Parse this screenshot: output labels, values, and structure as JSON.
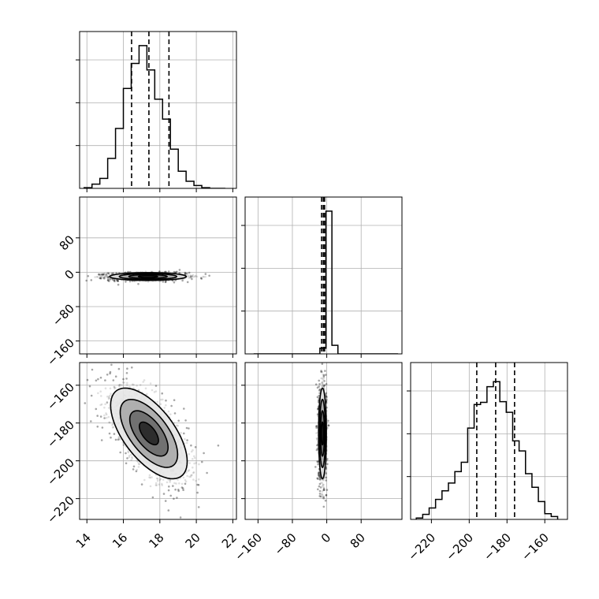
{
  "chart_data": {
    "type": "corner",
    "parameters": 3,
    "colors": {
      "line": "#000000",
      "grid": "#b0b0b0",
      "background": "#ffffff",
      "fill_dark": "#303030",
      "fill_mid": "#7a7a7a",
      "fill_light": "#cfcfcf"
    },
    "grid": true,
    "axes": [
      {
        "range": [
          13.6,
          22.2
        ],
        "ticks": [
          14,
          16,
          18,
          20,
          22
        ],
        "tick_labels": [
          "14",
          "16",
          "18",
          "20",
          "22"
        ]
      },
      {
        "range": [
          -190,
          175
        ],
        "ticks": [
          -160,
          -80,
          0,
          80
        ],
        "tick_labels": [
          "−160",
          "−80",
          "0",
          "80"
        ]
      },
      {
        "range": [
          -231,
          -148
        ],
        "ticks": [
          -220,
          -200,
          -180,
          -160
        ],
        "tick_labels": [
          "−220",
          "−200",
          "−180",
          "−160"
        ]
      }
    ],
    "marginals": [
      {
        "param": 0,
        "bin_edges": [
          13.85,
          14.28,
          14.71,
          15.14,
          15.57,
          16.0,
          16.43,
          16.86,
          17.29,
          17.72,
          18.15,
          18.58,
          19.01,
          19.44,
          19.87,
          20.3,
          20.73,
          21.16,
          21.59
        ],
        "counts": [
          1,
          6,
          14,
          42,
          84,
          140,
          175,
          200,
          166,
          125,
          97,
          55,
          24,
          10,
          4,
          1,
          0,
          0
        ],
        "ymax": 200,
        "quantiles": [
          16.45,
          17.4,
          18.5
        ]
      },
      {
        "param": 1,
        "bin_edges": [
          -170,
          -156,
          -142,
          -128,
          -114,
          -100,
          -86,
          -72,
          -58,
          -44,
          -30,
          -16,
          -2,
          12,
          26,
          40,
          54,
          68,
          82,
          96,
          110,
          124,
          138,
          152,
          166
        ],
        "counts": [
          0,
          0,
          0,
          0,
          0,
          0,
          0,
          0,
          0,
          0,
          0,
          0.04,
          1,
          0.06,
          0,
          0,
          0,
          0,
          0,
          0,
          0,
          0,
          0,
          0
        ],
        "ymax": 1.0,
        "quantiles": [
          -12,
          -8,
          -5
        ]
      },
      {
        "param": 2,
        "bin_edges": [
          -228,
          -224.6,
          -221.2,
          -217.8,
          -214.4,
          -211.0,
          -207.6,
          -204.2,
          -200.8,
          -197.4,
          -194.0,
          -190.6,
          -187.2,
          -183.8,
          -180.4,
          -177.0,
          -173.6,
          -170.2,
          -166.8,
          -163.4,
          -160.0,
          -156.6,
          -153.2
        ],
        "counts": [
          2,
          7,
          16,
          28,
          40,
          51,
          67,
          80,
          128,
          161,
          164,
          186,
          193,
          165,
          150,
          110,
          96,
          64,
          45,
          25,
          8,
          4
        ],
        "ymax": 200,
        "quantiles": [
          -196.0,
          -186.0,
          -176.0
        ]
      }
    ],
    "pairs": [
      {
        "x_param": 0,
        "y_param": 1,
        "center": [
          17.35,
          -10
        ],
        "sigma": [
          1.05,
          4.5
        ],
        "corr": 0.0,
        "contour_radii": [
          0.5,
          1.0,
          1.5,
          2.0
        ]
      },
      {
        "x_param": 0,
        "y_param": 2,
        "center": [
          17.4,
          -185.5
        ],
        "sigma": [
          1.05,
          12.0
        ],
        "corr": -0.62,
        "contour_radii": [
          0.5,
          1.0,
          1.5,
          2.0
        ]
      },
      {
        "x_param": 1,
        "y_param": 2,
        "center": [
          -10,
          -185.5
        ],
        "sigma": [
          4.5,
          12.0
        ],
        "corr": 0.0,
        "contour_radii": [
          0.5,
          1.0,
          1.5,
          2.0
        ]
      }
    ]
  }
}
